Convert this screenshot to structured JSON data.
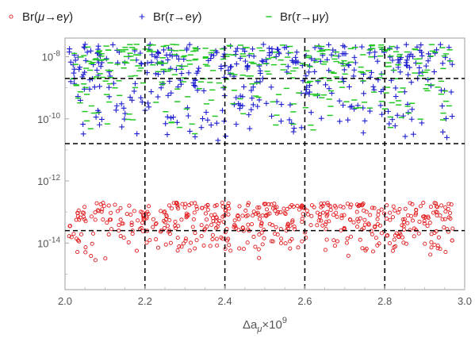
{
  "chart_data": {
    "type": "scatter",
    "title": "",
    "xlabel": "Δa",
    "xlabel_sub": "μ",
    "xlabel_suffix": "×10",
    "xlabel_sup": "9",
    "xlim": [
      2.0,
      3.0
    ],
    "ylim_log10": [
      -15.5,
      -7.4
    ],
    "y_scale": "log",
    "x_ticks": [
      "2.0",
      "2.2",
      "2.4",
      "2.6",
      "2.8",
      "3.0"
    ],
    "y_ticks": [
      {
        "base": "10",
        "exp": "-8"
      },
      {
        "base": "10",
        "exp": "-10"
      },
      {
        "base": "10",
        "exp": "-12"
      },
      {
        "base": "10",
        "exp": "-14"
      }
    ],
    "legend_position": "top",
    "legend": [
      {
        "pre": "Br(",
        "a": "μ",
        "arrow": "→",
        "b": "e",
        "g": "γ",
        "post": ")",
        "marker": "circle",
        "color": "#e31a1c"
      },
      {
        "pre": "Br(",
        "a": "τ",
        "arrow": "→",
        "b": "e",
        "g": "γ",
        "post": ")",
        "marker": "plus",
        "color": "#1f1fcf"
      },
      {
        "pre": "Br(",
        "a": "τ",
        "arrow": "→",
        "b": "μ",
        "g": "γ",
        "post": ")",
        "marker": "dash",
        "color": "#22c922"
      }
    ],
    "reference_lines_x": [
      2.2,
      2.4,
      2.6,
      2.8
    ],
    "reference_lines_y_log10": [
      -8.7,
      -10.8,
      -13.6
    ],
    "series": [
      {
        "name": "Br(μ→eγ)",
        "marker": "circle",
        "color": "#e31a1c",
        "x_range": [
          2.01,
          2.97
        ],
        "log10_y_range": [
          -14.6,
          -12.7
        ],
        "count": 520,
        "seed": 11
      },
      {
        "name": "Br(τ→eγ)",
        "marker": "plus",
        "color": "#1f1fcf",
        "x_range": [
          2.01,
          2.97
        ],
        "log10_y_range": [
          -10.8,
          -7.6
        ],
        "count": 420,
        "seed": 23
      },
      {
        "name": "Br(τ→μγ)",
        "marker": "dash",
        "color": "#22c922",
        "x_range": [
          2.01,
          2.97
        ],
        "log10_y_range": [
          -10.6,
          -7.6
        ],
        "count": 360,
        "seed": 37
      }
    ]
  }
}
